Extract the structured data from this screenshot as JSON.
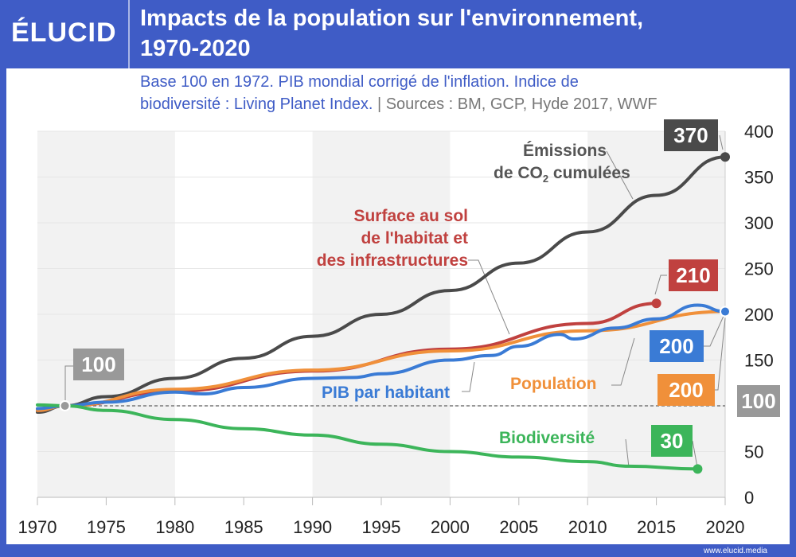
{
  "header": {
    "logo": "ÉLUCID",
    "title_line1": "Impacts de la population sur l'environnement,",
    "title_line2": "1970-2020"
  },
  "subtitle": {
    "line1": "Base 100 en 1972. PIB mondial corrigé de l'inflation. Indice de",
    "line2": "biodiversité : Living Planet Index.",
    "sep": " | ",
    "sources": "Sources : BM, GCP, Hyde 2017, WWF"
  },
  "footer": "www.elucid.media",
  "chart_data": {
    "type": "line",
    "title": "Impacts de la population sur l'environnement, 1970-2020",
    "xlim": [
      1970,
      2020
    ],
    "ylim": [
      0,
      400
    ],
    "xticks": [
      1970,
      1975,
      1980,
      1985,
      1990,
      1995,
      2000,
      2005,
      2010,
      2015,
      2020
    ],
    "yticks": [
      0,
      50,
      100,
      150,
      200,
      250,
      300,
      350,
      400
    ],
    "baseline": 100,
    "baseline_label": "100",
    "base_point_label": "100",
    "series": [
      {
        "name": "Émissions de CO2 cumulées",
        "label1": "Émissions",
        "label2": "de CO",
        "label2_sub": "2",
        "label2_end": " cumulées",
        "color": "#4a4a4a",
        "end_label": "370",
        "x": [
          1970,
          1972,
          1975,
          1980,
          1985,
          1990,
          1995,
          2000,
          2005,
          2010,
          2015,
          2020
        ],
        "y": [
          93,
          100,
          110,
          130,
          152,
          176,
          200,
          226,
          256,
          290,
          330,
          372
        ]
      },
      {
        "name": "Surface au sol de l'habitat et des infrastructures",
        "label1": "Surface au sol",
        "label2": "de l'habitat et",
        "label3": "des infrastructures",
        "color": "#c0413f",
        "end_label": "210",
        "x": [
          1970,
          1972,
          1980,
          1990,
          2000,
          2010,
          2015
        ],
        "y": [
          95,
          100,
          116,
          138,
          162,
          190,
          212
        ]
      },
      {
        "name": "PIB par habitant",
        "label1": "PIB par habitant",
        "color": "#3a7bd5",
        "end_label": "200",
        "x": [
          1970,
          1972,
          1975,
          1980,
          1982,
          1985,
          1990,
          1993,
          1995,
          2000,
          2003,
          2005,
          2008,
          2009,
          2012,
          2015,
          2018,
          2020
        ],
        "y": [
          97,
          100,
          104,
          115,
          113,
          120,
          130,
          131,
          135,
          150,
          155,
          165,
          178,
          173,
          185,
          195,
          210,
          203
        ]
      },
      {
        "name": "Population",
        "label1": "Population",
        "color": "#f0903a",
        "end_label": "200",
        "x": [
          1970,
          1972,
          1980,
          1990,
          2000,
          2010,
          2020
        ],
        "y": [
          95,
          100,
          118,
          139,
          160,
          182,
          203
        ]
      },
      {
        "name": "Biodiversité",
        "label1": "Biodiversité",
        "color": "#3cb55a",
        "end_label": "30",
        "x": [
          1970,
          1972,
          1975,
          1980,
          1985,
          1990,
          1995,
          2000,
          2005,
          2010,
          2013,
          2018
        ],
        "y": [
          101,
          100,
          95,
          85,
          75,
          68,
          58,
          50,
          44,
          39,
          34,
          31
        ]
      }
    ]
  }
}
